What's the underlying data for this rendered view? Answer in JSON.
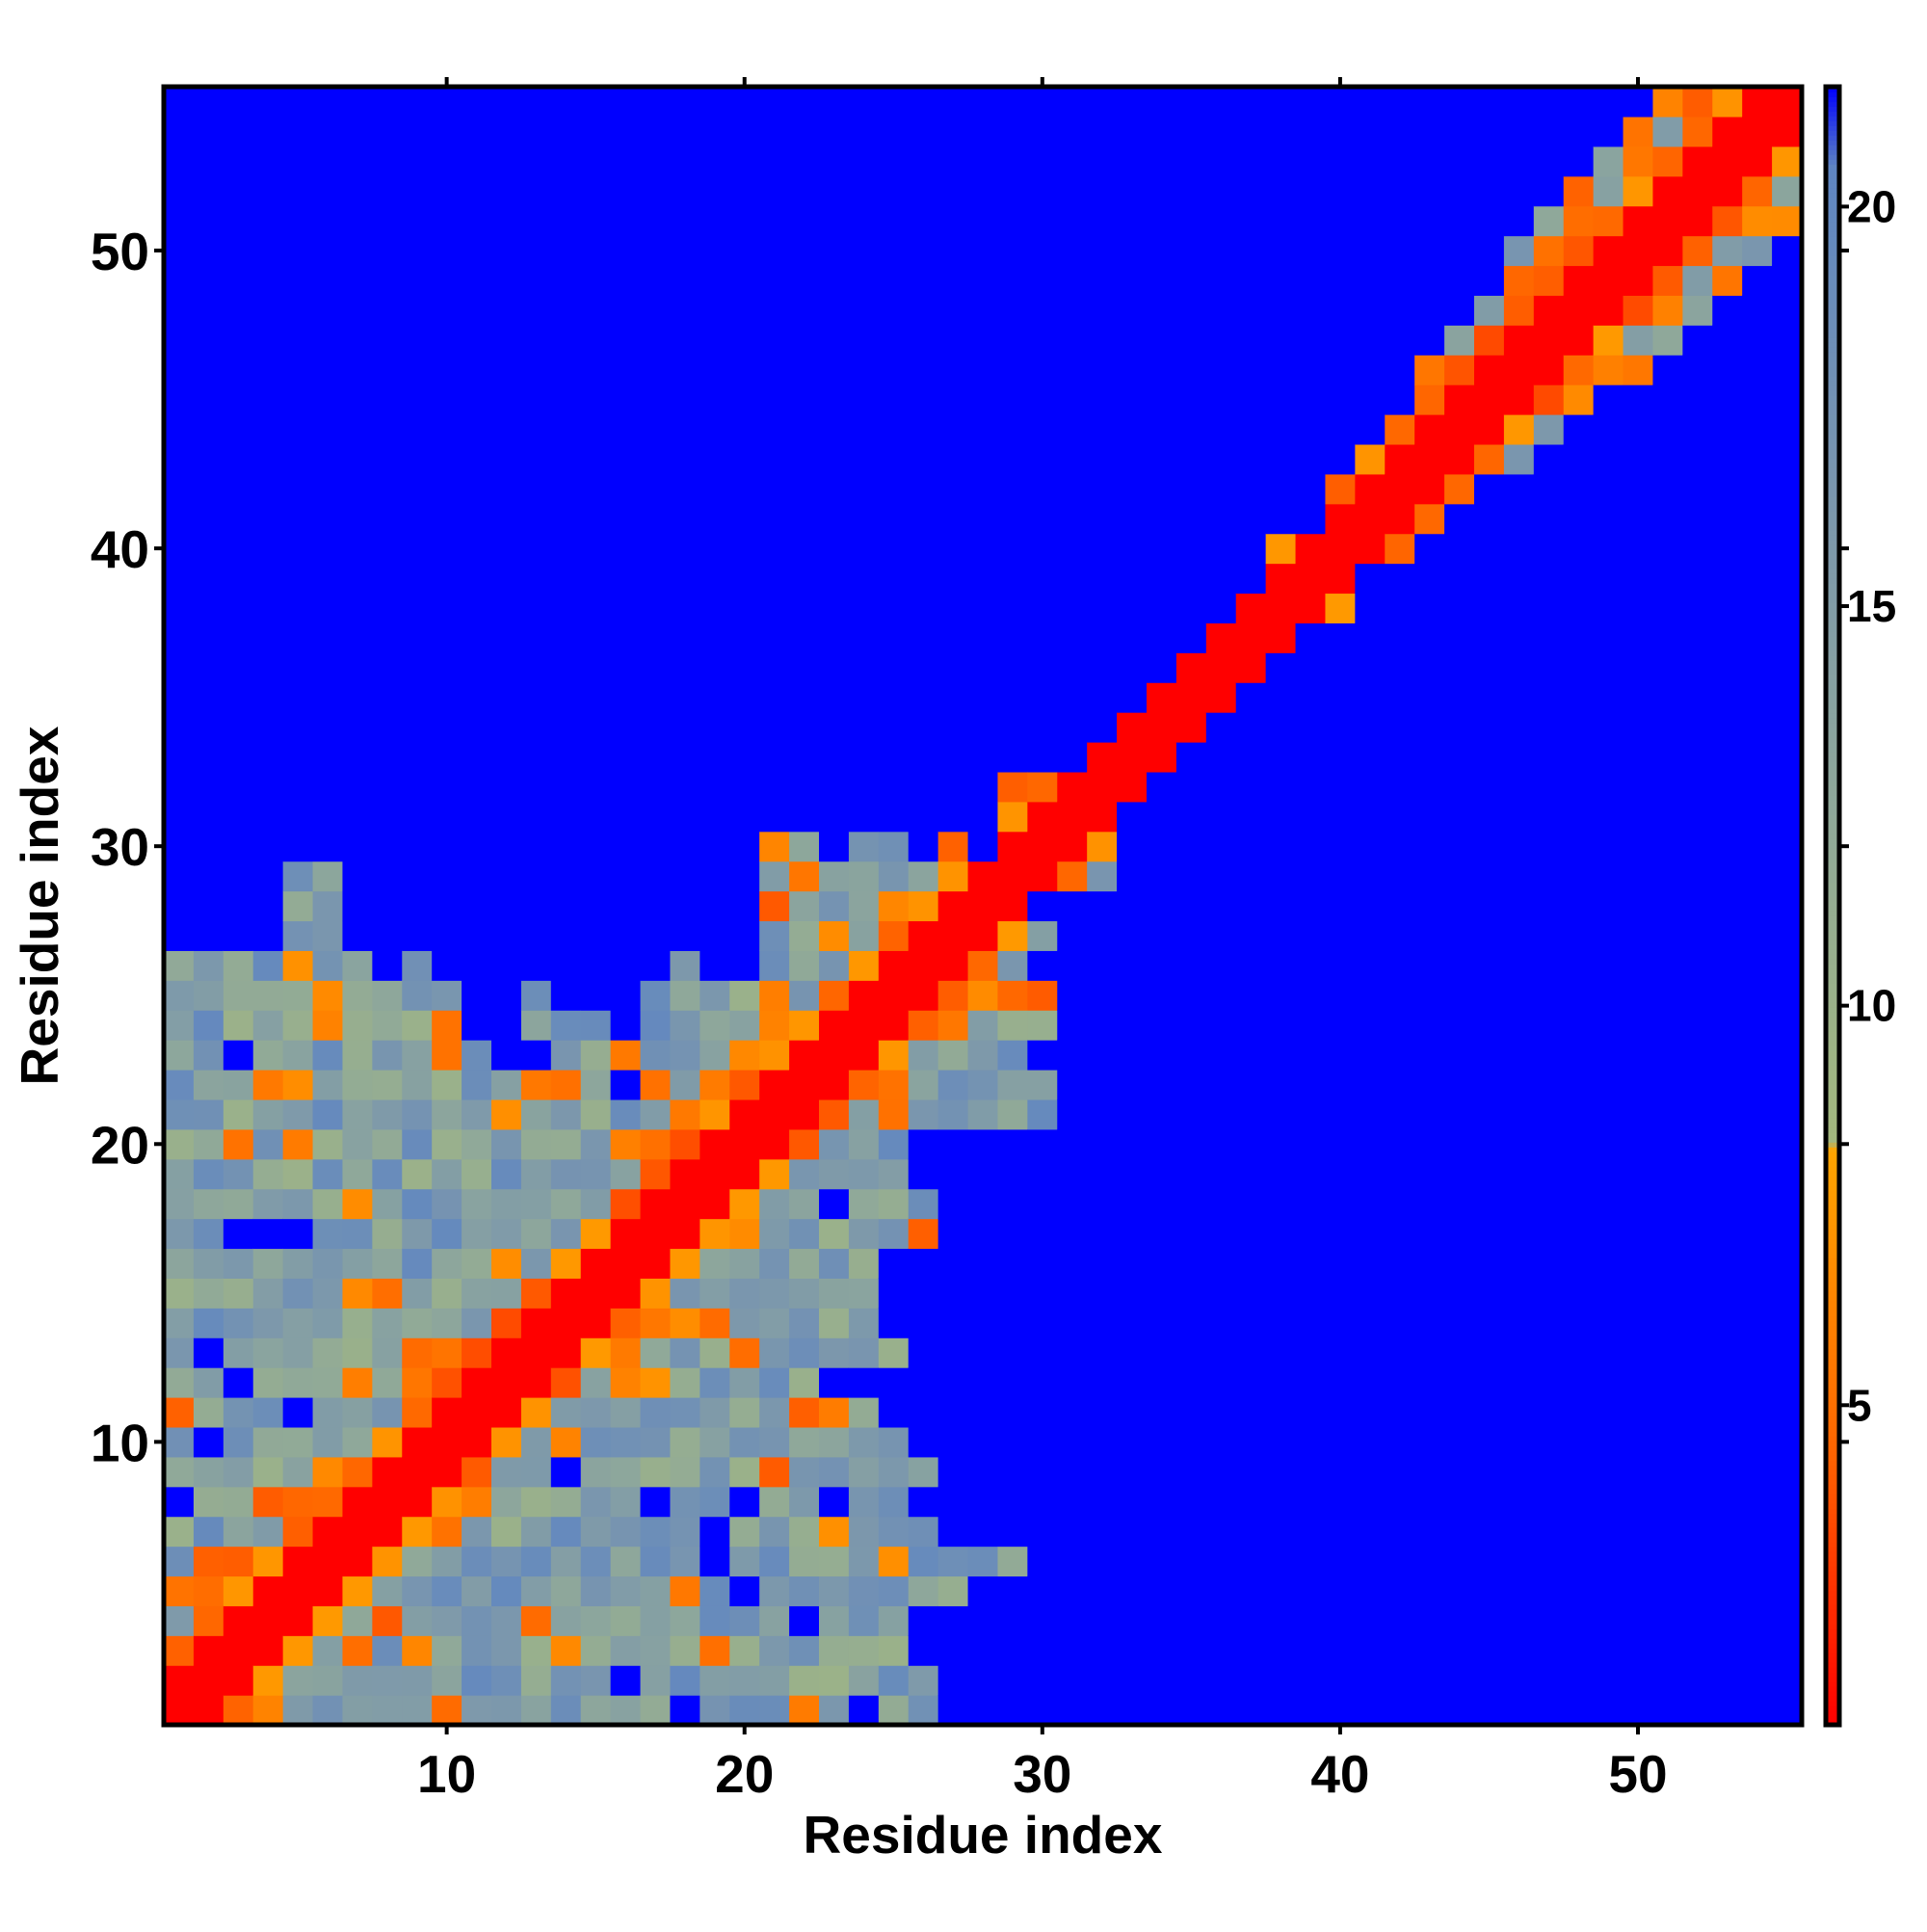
{
  "chart_data": {
    "type": "heatmap",
    "title": "",
    "xlabel": "Residue index",
    "ylabel": "Residue index",
    "x_range": [
      0.5,
      55.5
    ],
    "y_range": [
      0.5,
      55.5
    ],
    "n_residues": 55,
    "x_ticks": [
      10,
      20,
      30,
      40,
      50
    ],
    "y_ticks": [
      10,
      20,
      30,
      40,
      50
    ],
    "tick_labels": [
      "10",
      "20",
      "30",
      "40",
      "50"
    ],
    "colorbar": {
      "range": [
        1,
        21.5
      ],
      "ticks": [
        5,
        10,
        15,
        20
      ],
      "tick_labels": [
        "5",
        "10",
        "15",
        "20"
      ],
      "stops": [
        {
          "value": 1.0,
          "color": "#ff0000"
        },
        {
          "value": 4.5,
          "color": "#ff6600"
        },
        {
          "value": 8.2,
          "color": "#ffa500"
        },
        {
          "value": 8.3,
          "color": "#a3b87e"
        },
        {
          "value": 12.5,
          "color": "#8fa89a"
        },
        {
          "value": 16.5,
          "color": "#7a96ae"
        },
        {
          "value": 20.5,
          "color": "#5f86c2"
        },
        {
          "value": 21.5,
          "color": "#0000ff"
        }
      ]
    },
    "diagonal_band": {
      "offset_max": 1.2,
      "value": 1.0
    },
    "symmetric": false,
    "masked_value": 21.5,
    "mask_color": "#0000ff",
    "note_structure": {
      "lower_triangle_cutoff": [
        [
          1,
          26
        ],
        [
          2,
          26
        ],
        [
          3,
          26
        ],
        [
          4,
          26
        ],
        [
          5,
          29
        ],
        [
          6,
          29
        ],
        [
          7,
          26
        ],
        [
          8,
          25
        ],
        [
          9,
          26
        ],
        [
          10,
          25
        ],
        [
          11,
          24
        ],
        [
          12,
          22
        ],
        [
          13,
          25
        ],
        [
          14,
          24
        ],
        [
          15,
          24
        ],
        [
          16,
          24
        ],
        [
          17,
          26
        ],
        [
          18,
          26
        ],
        [
          19,
          25
        ],
        [
          20,
          25
        ],
        [
          21,
          30
        ],
        [
          22,
          30
        ],
        [
          23,
          29
        ],
        [
          24,
          30
        ],
        [
          25,
          30
        ],
        [
          26,
          29
        ],
        [
          27,
          30
        ],
        [
          28,
          29
        ],
        [
          29,
          32
        ],
        [
          30,
          32
        ],
        [
          31,
          32
        ],
        [
          32,
          32
        ],
        [
          33,
          33
        ],
        [
          34,
          35
        ],
        [
          35,
          35
        ],
        [
          36,
          36
        ],
        [
          37,
          37
        ],
        [
          38,
          40
        ],
        [
          39,
          40
        ],
        [
          40,
          42
        ],
        [
          41,
          43
        ],
        [
          42,
          44
        ],
        [
          43,
          46
        ],
        [
          44,
          47
        ],
        [
          45,
          48
        ],
        [
          46,
          50
        ],
        [
          47,
          51
        ],
        [
          48,
          52
        ],
        [
          49,
          53
        ],
        [
          50,
          54
        ],
        [
          51,
          55
        ],
        [
          52,
          55
        ],
        [
          53,
          55
        ],
        [
          54,
          55
        ],
        [
          55,
          55
        ]
      ]
    }
  }
}
